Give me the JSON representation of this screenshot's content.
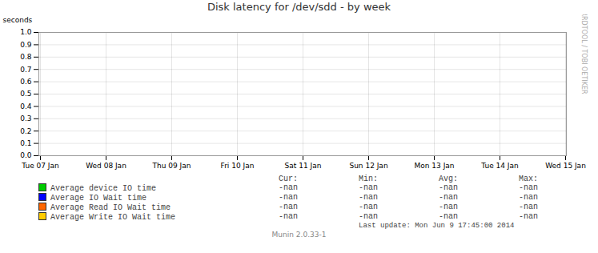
{
  "chart_data": {
    "type": "line",
    "title": "Disk latency for /dev/sdd - by week",
    "ylabel": "seconds",
    "categories": [
      "Tue 07 Jan",
      "Wed 08 Jan",
      "Thu 09 Jan",
      "Fri 10 Jan",
      "Sat 11 Jan",
      "Sun 12 Jan",
      "Mon 13 Jan",
      "Tue 14 Jan",
      "Wed 15 Jan"
    ],
    "series": [
      {
        "name": "Average device IO time",
        "color": "#00cc00",
        "values": [
          null,
          null,
          null,
          null,
          null,
          null,
          null,
          null,
          null
        ]
      },
      {
        "name": "Average IO Wait time",
        "color": "#0000ff",
        "values": [
          null,
          null,
          null,
          null,
          null,
          null,
          null,
          null,
          null
        ]
      },
      {
        "name": "Average Read IO Wait time",
        "color": "#ff6600",
        "values": [
          null,
          null,
          null,
          null,
          null,
          null,
          null,
          null,
          null
        ]
      },
      {
        "name": "Average Write IO Wait time",
        "color": "#ffcc00",
        "values": [
          null,
          null,
          null,
          null,
          null,
          null,
          null,
          null,
          null
        ]
      }
    ],
    "ylim": [
      0.0,
      1.0
    ],
    "yticks": [
      {
        "value": 0.0,
        "label": "0.0"
      },
      0.1,
      0.2,
      0.3,
      0.4,
      0.5,
      0.6,
      0.7,
      0.8,
      0.9,
      {
        "value": 1.0,
        "label": "1.0"
      }
    ],
    "grid": true,
    "legend": "bottom",
    "table": {
      "columns": [
        "Cur:",
        "Min:",
        "Avg:",
        "Max:"
      ],
      "rows": [
        [
          "-nan",
          "-nan",
          "-nan",
          "-nan"
        ],
        [
          "-nan",
          "-nan",
          "-nan",
          "-nan"
        ],
        [
          "-nan",
          "-nan",
          "-nan",
          "-nan"
        ],
        [
          "-nan",
          "-nan",
          "-nan",
          "-nan"
        ]
      ]
    },
    "watermark": "RRDTOOL / TOBI OETIKER",
    "caption": "Last update: Mon Jun  9 17:45:00 2014",
    "footer": "Munin 2.0.33-1"
  }
}
